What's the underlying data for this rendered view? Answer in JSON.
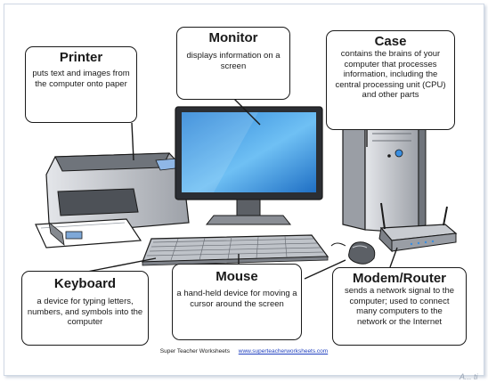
{
  "callouts": {
    "printer": {
      "title": "Printer",
      "description": "puts text and images from the computer onto paper"
    },
    "monitor": {
      "title": "Monitor",
      "description": "displays information on a screen"
    },
    "case": {
      "title": "Case",
      "description": "contains the brains of your computer that processes information, including the central processing unit (CPU) and other parts"
    },
    "keyboard": {
      "title": "Keyboard",
      "description": "a device for typing letters, numbers, and symbols into the computer"
    },
    "mouse": {
      "title": "Mouse",
      "description": "a hand-held device for moving a cursor around the screen"
    },
    "modem": {
      "title": "Modem/Router",
      "description": "sends a network signal to the computer; used to connect many computers to the network or the Internet"
    }
  },
  "footer": {
    "credit": "Super Teacher Worksheets",
    "url": "www.superteacherworksheets.com"
  },
  "corner_mark": "A... ti",
  "colors": {
    "outline": "#1a1a1a",
    "screen": "#4aa3e8",
    "device_gray": "#c9ccd1",
    "device_dark": "#5c6066",
    "accent_blue": "#2f7fd6"
  }
}
